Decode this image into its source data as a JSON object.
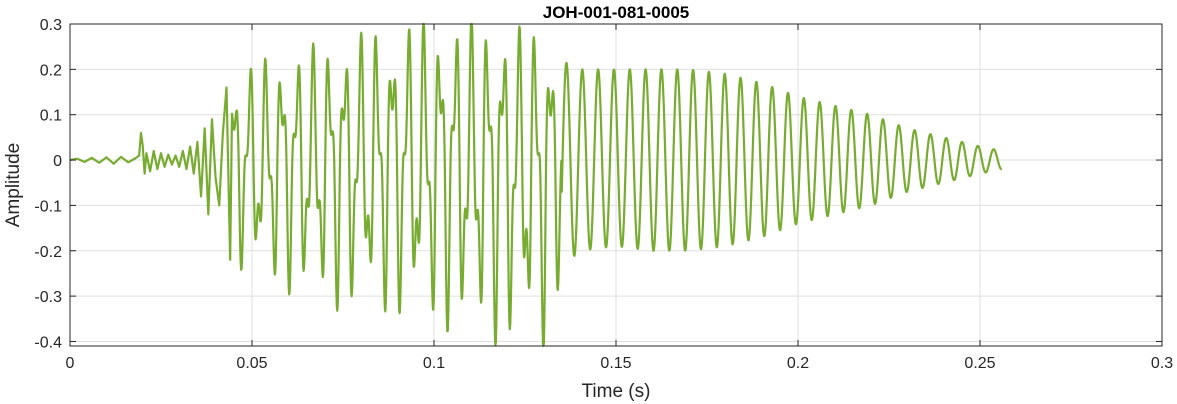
{
  "chart_data": {
    "type": "line",
    "title": "JOH-001-081-0005",
    "xlabel": "Time (s)",
    "ylabel": "Amplitude",
    "xlim": [
      0,
      0.3
    ],
    "ylim": [
      -0.41,
      0.3
    ],
    "grid": true,
    "x_ticks": [
      0,
      0.05,
      0.1,
      0.15,
      0.2,
      0.25,
      0.3
    ],
    "x_tick_labels": [
      "0",
      "0.05",
      "0.1",
      "0.15",
      "0.2",
      "0.25",
      "0.3"
    ],
    "y_ticks": [
      0.3,
      0.2,
      0.1,
      0,
      -0.1,
      -0.2,
      -0.3,
      -0.4
    ],
    "y_tick_labels": [
      "0.3",
      "0.2",
      "0.1",
      "0",
      "-0.1",
      "-0.2",
      "-0.3",
      "-0.4"
    ],
    "series": [
      {
        "color": "#77ac30",
        "x": [
          0,
          0.002,
          0.004,
          0.006,
          0.008,
          0.01,
          0.012,
          0.014,
          0.016,
          0.018,
          0.019,
          0.0195,
          0.02,
          0.0205,
          0.021,
          0.022,
          0.023,
          0.024,
          0.025,
          0.026,
          0.027,
          0.028,
          0.029,
          0.03,
          0.031,
          0.032,
          0.033,
          0.034,
          0.035,
          0.036,
          0.037,
          0.038,
          0.039,
          0.04,
          0.041,
          0.042,
          0.043,
          0.044
        ],
        "values": [
          0,
          0.003,
          -0.004,
          0.005,
          -0.006,
          0.006,
          -0.008,
          0.007,
          -0.005,
          0.004,
          0.01,
          0.06,
          0.03,
          -0.03,
          0.015,
          -0.025,
          0.02,
          -0.02,
          0.015,
          -0.015,
          0.012,
          -0.01,
          0.01,
          -0.015,
          0.02,
          -0.02,
          0.03,
          -0.03,
          0.04,
          -0.08,
          0.07,
          -0.12,
          0.09,
          -0.04,
          -0.1,
          0.06,
          0.16,
          -0.22
        ]
      }
    ]
  }
}
